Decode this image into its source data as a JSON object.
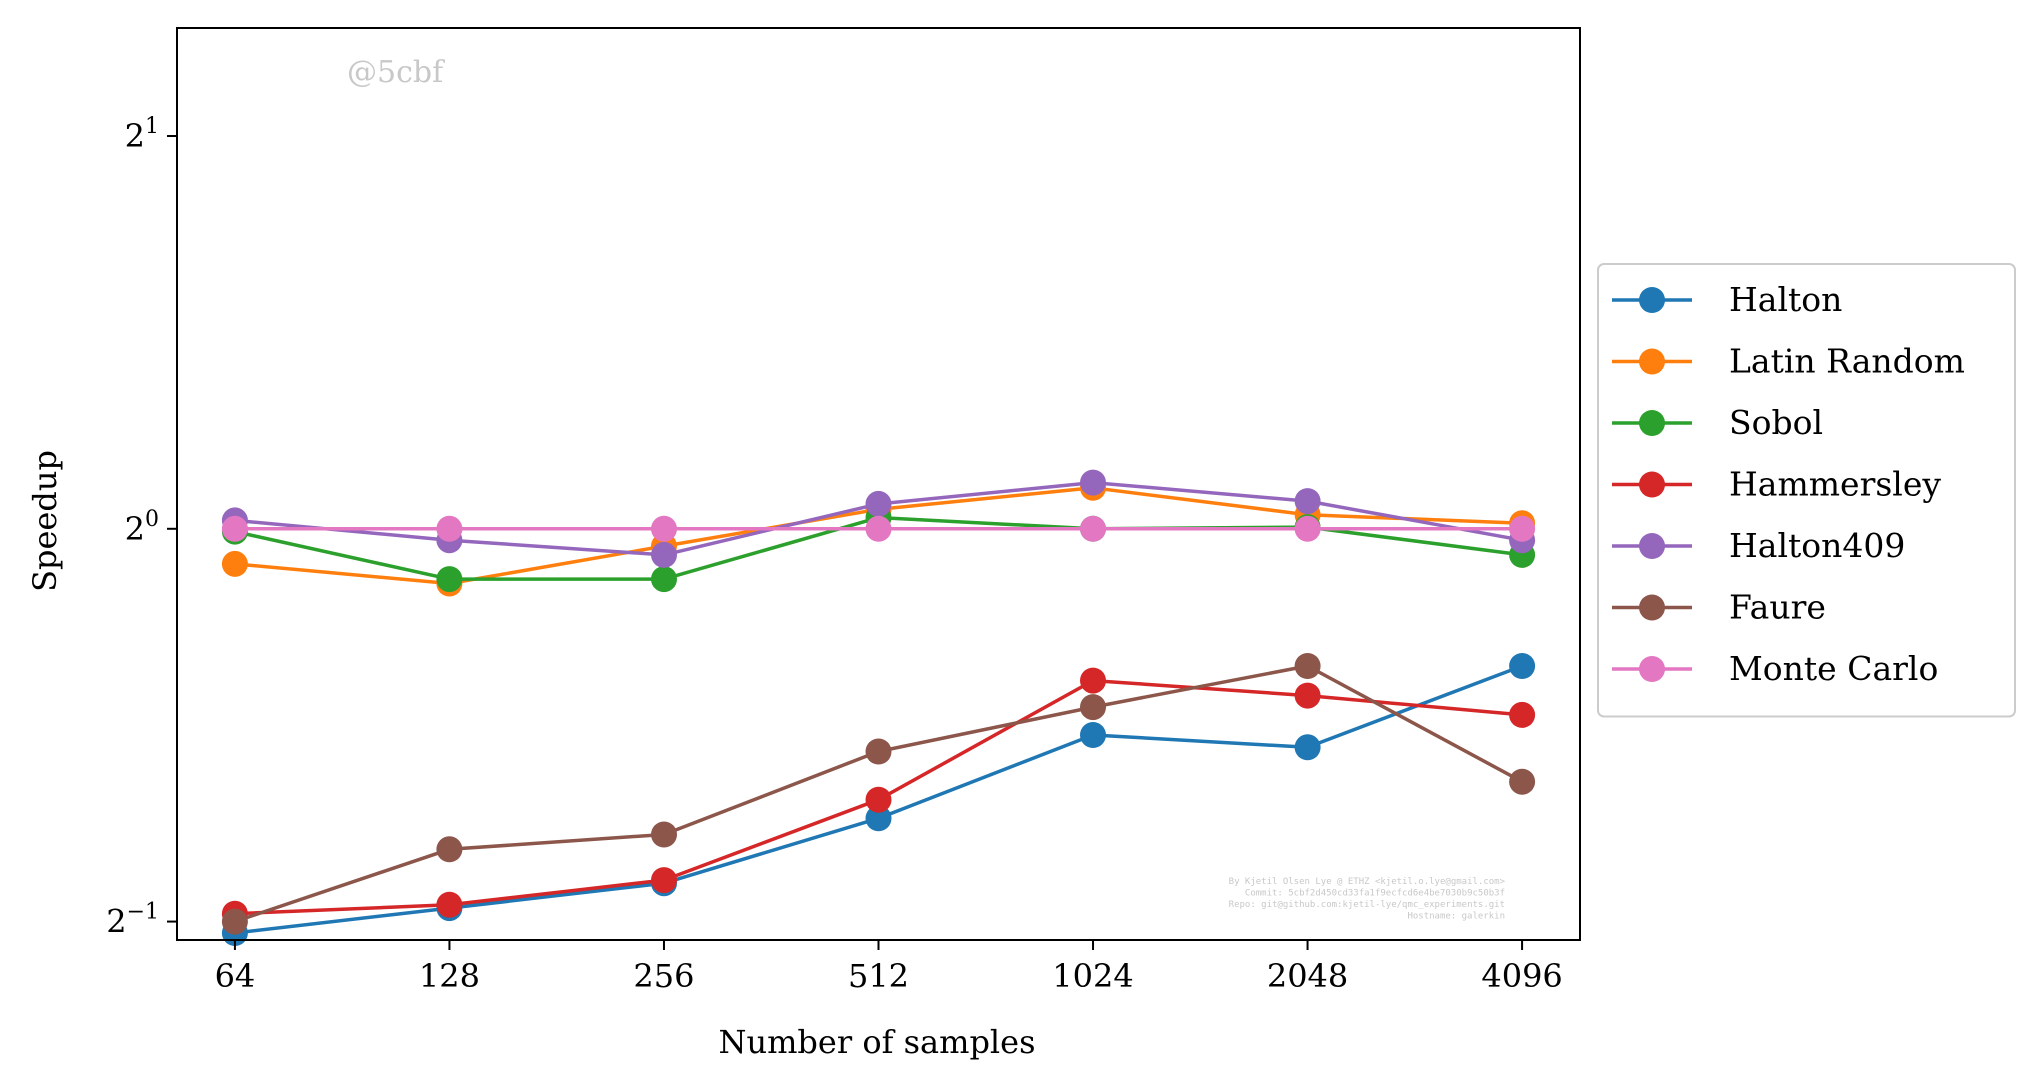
{
  "watermark": "@5cbf",
  "credits": [
    "By Kjetil Olsen Lye @ ETHZ <kjetil.o.lye@gmail.com>",
    "Commit: 5cbf2d450cd33fa1f9ecfcd6e4be7030b9c50b3f",
    "Repo: git@github.com:kjetil-lye/qmc_experiments.git",
    "Hostname: galerkin"
  ],
  "chart_data": {
    "type": "line",
    "title": "",
    "xlabel": "Number of samples",
    "ylabel": "Speedup",
    "x_scale": "log2",
    "y_scale": "log2",
    "categories": [
      "64",
      "128",
      "256",
      "512",
      "1024",
      "2048",
      "4096"
    ],
    "x": [
      64,
      128,
      256,
      512,
      1024,
      2048,
      4096
    ],
    "y_ticks": [
      0.5,
      1,
      2
    ],
    "y_tick_labels": [
      {
        "base": "2",
        "exp": "−1"
      },
      {
        "base": "2",
        "exp": "0"
      },
      {
        "base": "2",
        "exp": "1"
      }
    ],
    "ylim": [
      0.484,
      2.42
    ],
    "grid": false,
    "legend_position": "outside-right",
    "series": [
      {
        "name": "Halton",
        "color": "#1f77b4",
        "values": [
          0.49,
          0.512,
          0.535,
          0.6,
          0.695,
          0.68,
          0.785
        ]
      },
      {
        "name": "Latin Random",
        "color": "#ff7f0e",
        "values": [
          0.94,
          0.908,
          0.97,
          1.035,
          1.075,
          1.025,
          1.01
        ]
      },
      {
        "name": "Sobol",
        "color": "#2ca02c",
        "values": [
          0.995,
          0.915,
          0.915,
          1.02,
          1.0,
          1.003,
          0.955
        ]
      },
      {
        "name": "Hammersley",
        "color": "#d62728",
        "values": [
          0.507,
          0.515,
          0.538,
          0.62,
          0.765,
          0.745,
          0.72
        ]
      },
      {
        "name": "Halton409",
        "color": "#9467bd",
        "values": [
          1.015,
          0.98,
          0.955,
          1.045,
          1.085,
          1.05,
          0.98
        ]
      },
      {
        "name": "Faure",
        "color": "#8c564b",
        "values": [
          0.5,
          0.568,
          0.583,
          0.675,
          0.73,
          0.785,
          0.64
        ]
      },
      {
        "name": "Monte Carlo",
        "color": "#e377c2",
        "values": [
          1.0,
          1.0,
          1.0,
          1.0,
          1.0,
          1.0,
          1.0
        ]
      }
    ]
  }
}
